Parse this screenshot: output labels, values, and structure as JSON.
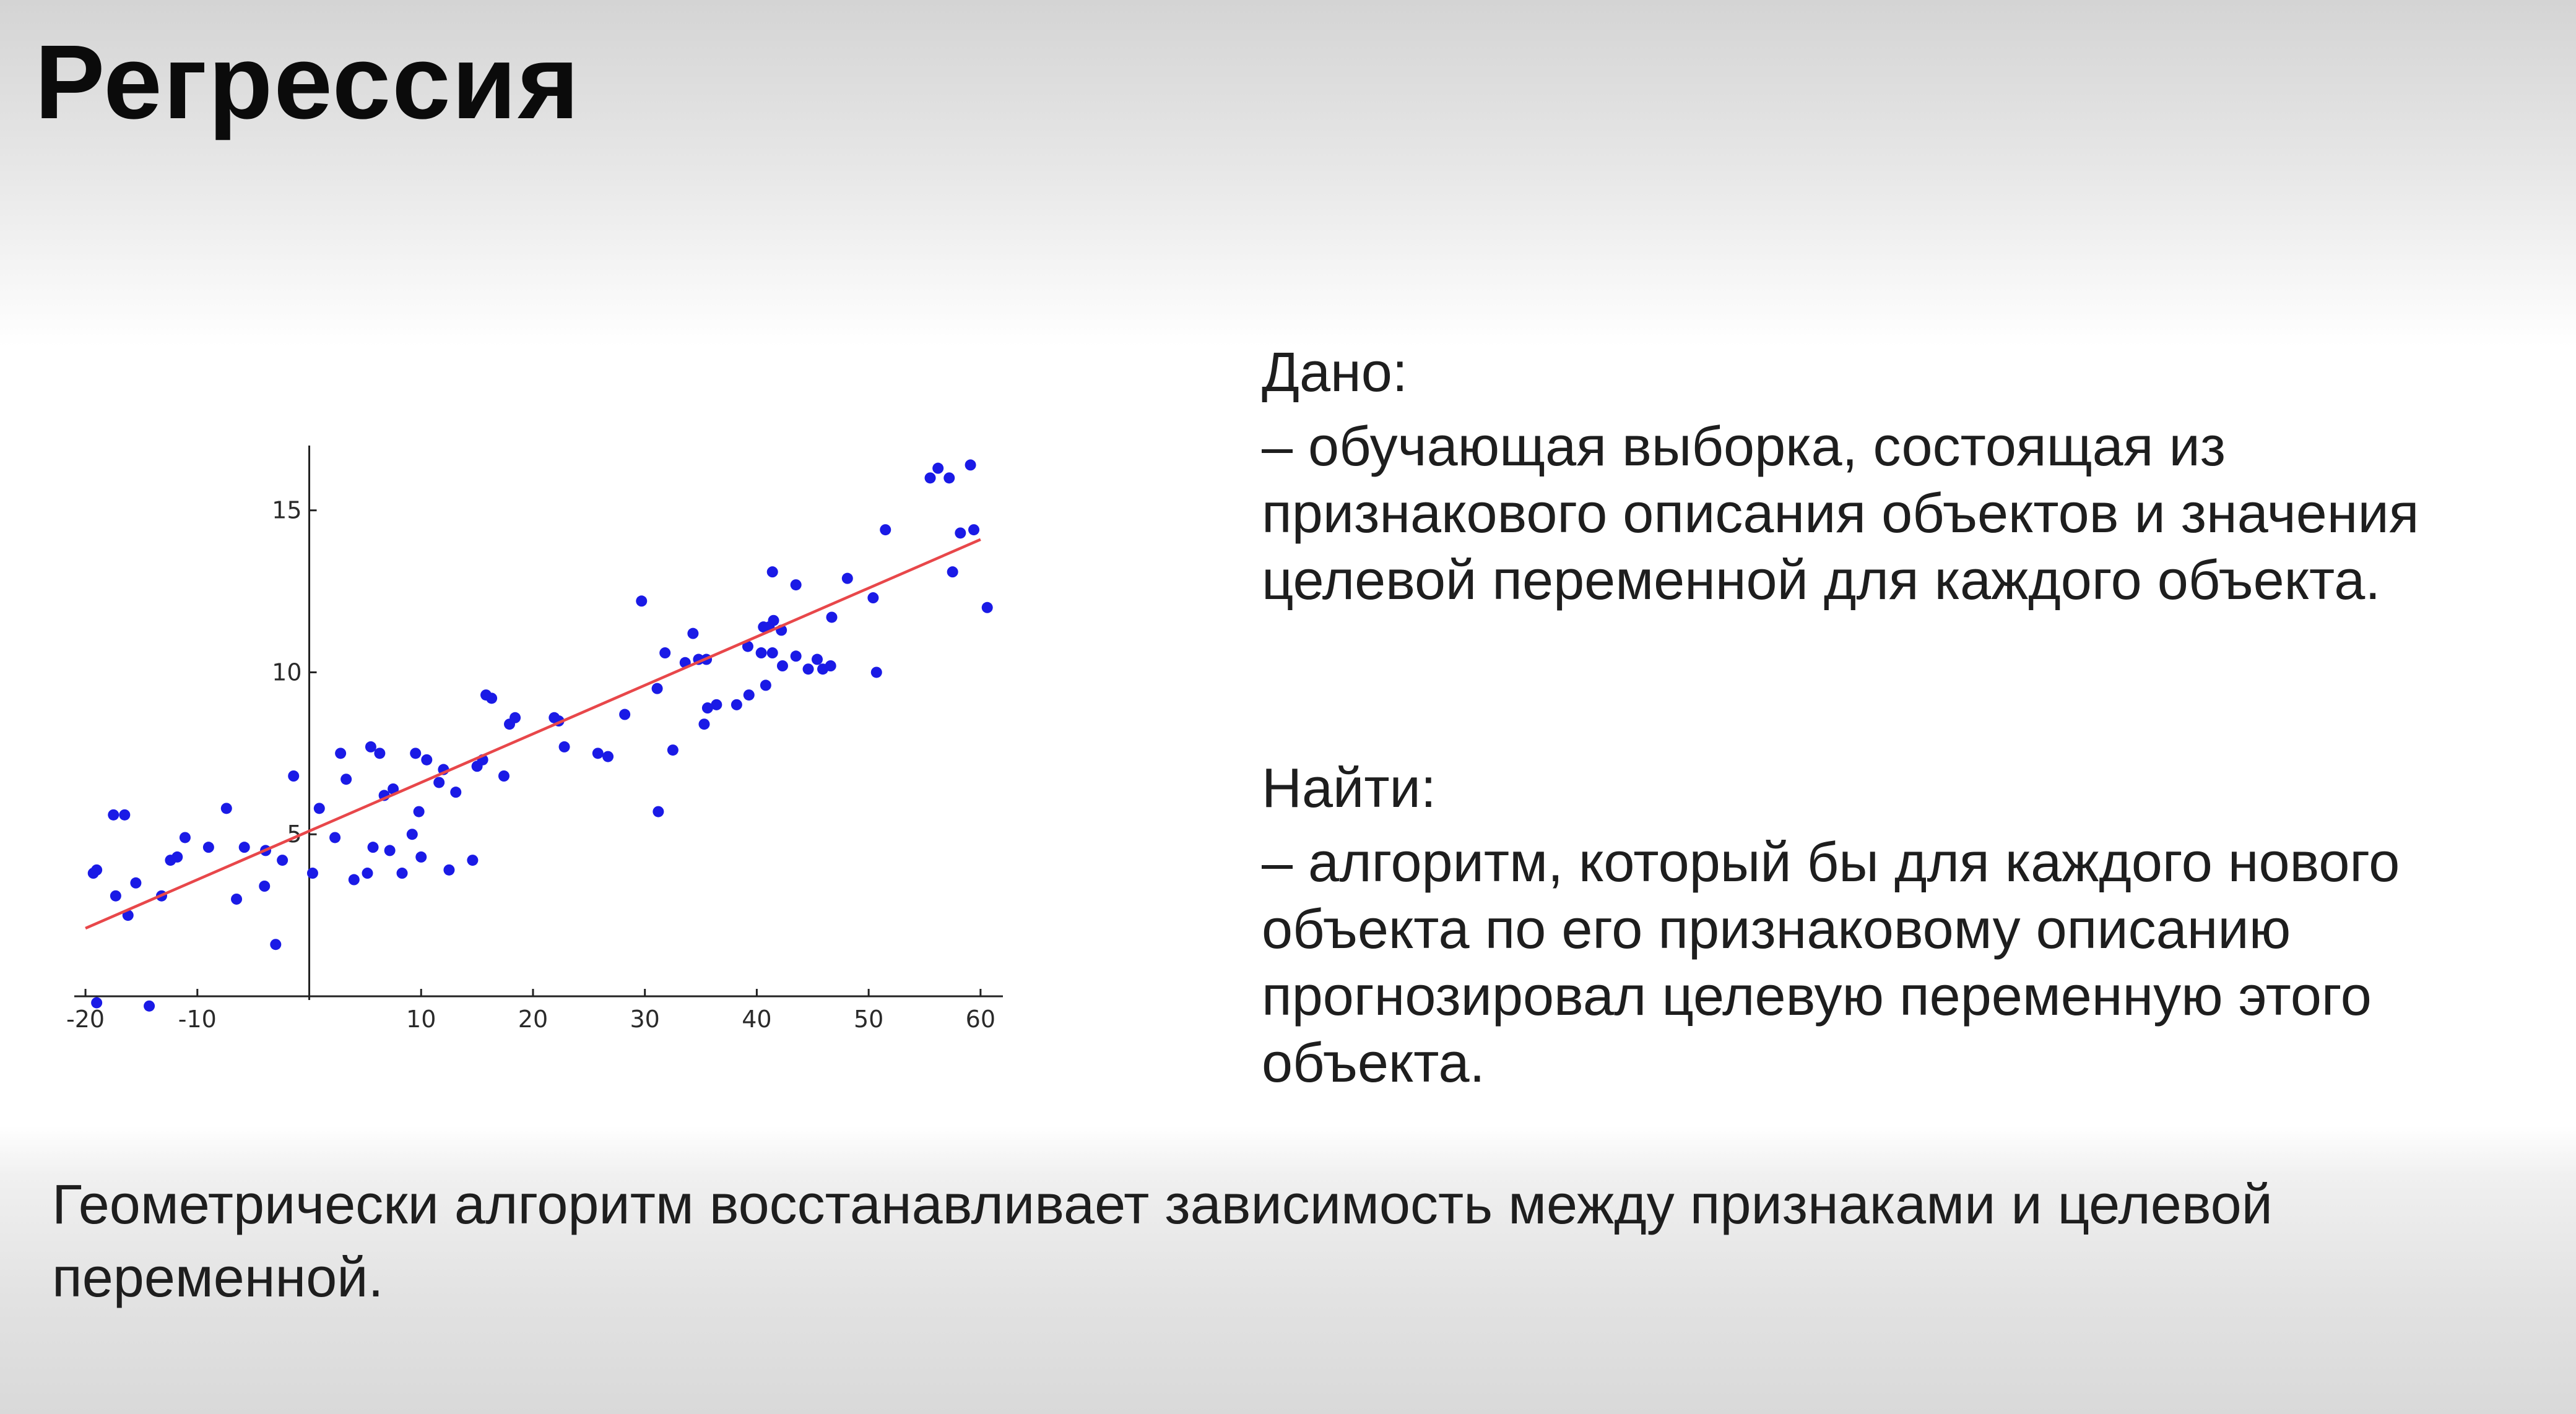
{
  "slide": {
    "title": "Регрессия"
  },
  "given": {
    "heading": "Дано:",
    "text": "–  обучающая выборка, состоящая из признакового описания объектов и значения целевой переменной для каждого объекта."
  },
  "find": {
    "heading": "Найти:",
    "text": "–  алгоритм, который бы для каждого нового объекта по его признаковому описанию прогнозировал целевую переменную этого объекта."
  },
  "conclusion": {
    "text": "Геометрически алгоритм восстанавливает зависимость между признаками и целевой переменной."
  },
  "chart_data": {
    "type": "scatter",
    "title": "",
    "xlabel": "",
    "ylabel": "",
    "xlim": [
      -21,
      62
    ],
    "ylim": [
      0,
      17
    ],
    "x_ticks": [
      -20,
      -10,
      10,
      20,
      30,
      40,
      50,
      60
    ],
    "x_tick_labels": [
      "-20",
      "-10",
      "10",
      "20",
      "30",
      "40",
      "50",
      "60"
    ],
    "y_ticks": [
      5,
      10,
      15
    ],
    "y_tick_labels": [
      "5",
      "10",
      "15"
    ],
    "grid": false,
    "legend": "none",
    "colors": {
      "points": "#1a1ae6",
      "line": "#e8474a",
      "axis": "#222222"
    },
    "points": [
      [
        -19.3,
        3.8
      ],
      [
        -19,
        3.9
      ],
      [
        -19,
        -0.2
      ],
      [
        -17.5,
        5.6
      ],
      [
        -17.3,
        3.1
      ],
      [
        -16.5,
        5.6
      ],
      [
        -16.2,
        2.5
      ],
      [
        -15.5,
        3.5
      ],
      [
        -14.3,
        -0.3
      ],
      [
        -13.2,
        3.1
      ],
      [
        -12.4,
        4.2
      ],
      [
        -11.8,
        4.3
      ],
      [
        -11.1,
        4.9
      ],
      [
        -9,
        4.6
      ],
      [
        -7.4,
        5.8
      ],
      [
        -6.5,
        3
      ],
      [
        -5.8,
        4.6
      ],
      [
        -4,
        3.4
      ],
      [
        -3.9,
        4.5
      ],
      [
        -3,
        1.6
      ],
      [
        -2.4,
        4.2
      ],
      [
        -1.4,
        6.8
      ],
      [
        0.3,
        3.8
      ],
      [
        0.9,
        5.8
      ],
      [
        2.3,
        4.9
      ],
      [
        2.8,
        7.5
      ],
      [
        3.3,
        6.7
      ],
      [
        4,
        3.6
      ],
      [
        5.2,
        3.8
      ],
      [
        5.5,
        7.7
      ],
      [
        5.7,
        4.6
      ],
      [
        6.3,
        7.5
      ],
      [
        6.7,
        6.2
      ],
      [
        7.2,
        4.5
      ],
      [
        7.5,
        6.4
      ],
      [
        8.3,
        3.8
      ],
      [
        9.2,
        5
      ],
      [
        9.5,
        7.5
      ],
      [
        9.8,
        5.7
      ],
      [
        10,
        4.3
      ],
      [
        10.5,
        7.3
      ],
      [
        11.6,
        6.6
      ],
      [
        12,
        7
      ],
      [
        12.5,
        3.9
      ],
      [
        13.1,
        6.3
      ],
      [
        14.6,
        4.2
      ],
      [
        15,
        7.1
      ],
      [
        15.5,
        7.3
      ],
      [
        15.8,
        9.3
      ],
      [
        16.3,
        9.2
      ],
      [
        17.4,
        6.8
      ],
      [
        17.9,
        8.4
      ],
      [
        18.4,
        8.6
      ],
      [
        21.9,
        8.6
      ],
      [
        22.3,
        8.5
      ],
      [
        22.8,
        7.7
      ],
      [
        25.8,
        7.5
      ],
      [
        26.7,
        7.4
      ],
      [
        28.2,
        8.7
      ],
      [
        29.7,
        12.2
      ],
      [
        31.1,
        9.5
      ],
      [
        31.2,
        5.7
      ],
      [
        31.8,
        10.6
      ],
      [
        32.5,
        7.6
      ],
      [
        33.6,
        10.3
      ],
      [
        34.3,
        11.2
      ],
      [
        34.8,
        10.4
      ],
      [
        35.3,
        8.4
      ],
      [
        35.5,
        10.4
      ],
      [
        35.6,
        8.9
      ],
      [
        36.4,
        9
      ],
      [
        38.2,
        9
      ],
      [
        39.2,
        10.8
      ],
      [
        39.3,
        9.3
      ],
      [
        40.4,
        10.6
      ],
      [
        40.6,
        11.4
      ],
      [
        40.8,
        9.6
      ],
      [
        41.1,
        11.4
      ],
      [
        41.4,
        10.6
      ],
      [
        41.5,
        11.6
      ],
      [
        41.4,
        13.1
      ],
      [
        42.2,
        11.3
      ],
      [
        42.3,
        10.2
      ],
      [
        43.5,
        10.5
      ],
      [
        43.5,
        12.7
      ],
      [
        44.6,
        10.1
      ],
      [
        45.4,
        10.4
      ],
      [
        45.9,
        10.1
      ],
      [
        46.6,
        10.2
      ],
      [
        46.7,
        11.7
      ],
      [
        48.1,
        12.9
      ],
      [
        50.4,
        12.3
      ],
      [
        50.7,
        10
      ],
      [
        51.5,
        14.4
      ],
      [
        55.5,
        16
      ],
      [
        56.2,
        16.3
      ],
      [
        57.2,
        16
      ],
      [
        57.5,
        13.1
      ],
      [
        58.2,
        14.3
      ],
      [
        59.1,
        16.4
      ],
      [
        59.4,
        14.4
      ],
      [
        60.6,
        12
      ]
    ],
    "regression_line": {
      "x": [
        -20,
        60
      ],
      "y": [
        2.1,
        14.1
      ]
    }
  }
}
